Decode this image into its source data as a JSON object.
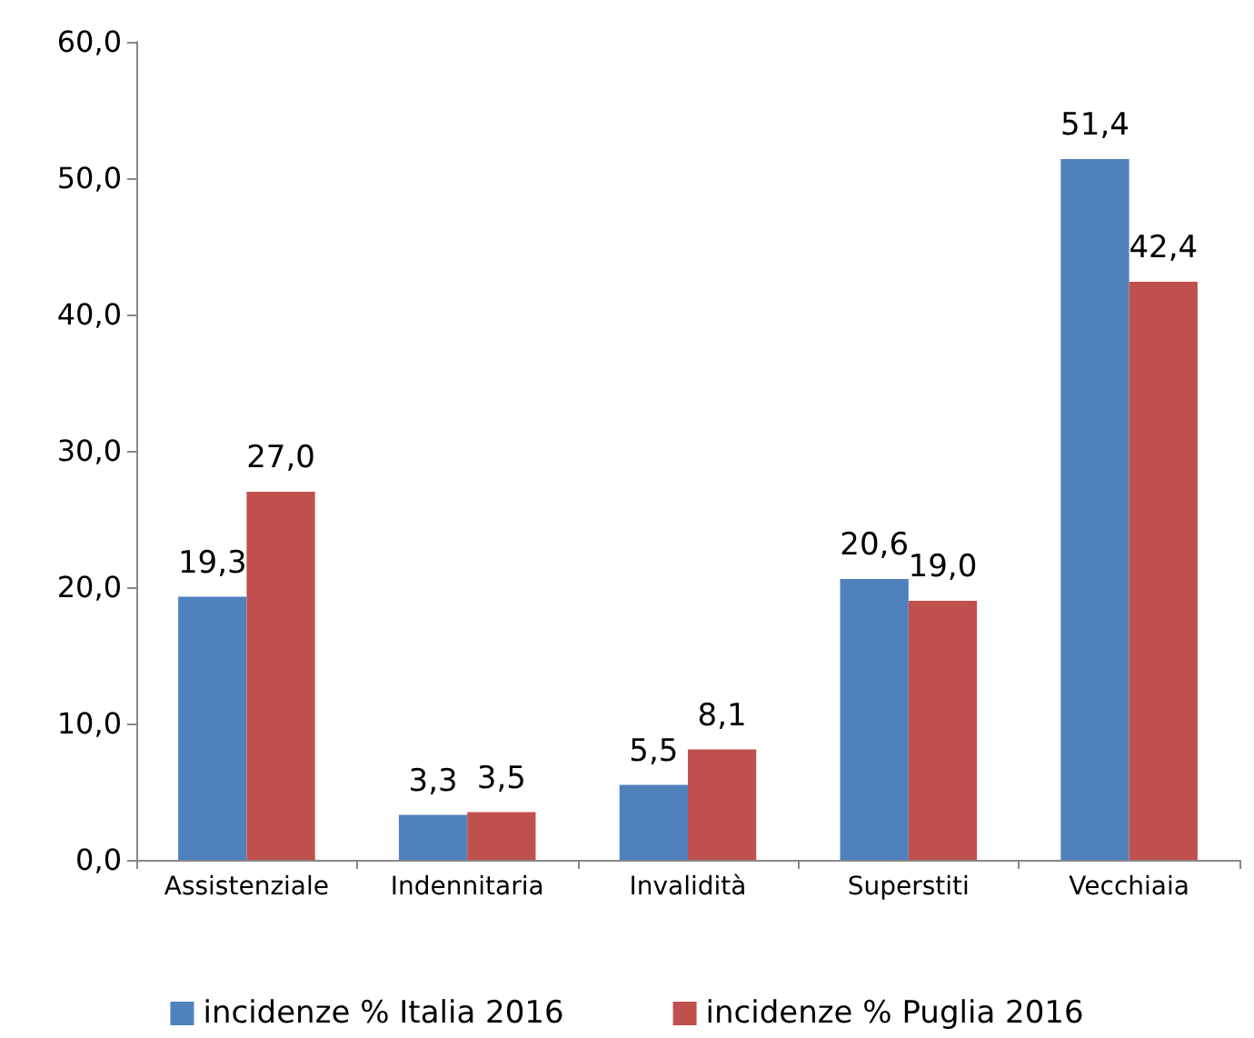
{
  "chart_data": {
    "type": "bar",
    "categories": [
      "Assistenziale",
      "Indennitaria",
      "Invalidità",
      "Superstiti",
      "Vecchiaia"
    ],
    "series": [
      {
        "name": "incidenze % Italia 2016",
        "color": "#4f81bd",
        "values": [
          19.3,
          3.3,
          5.5,
          20.6,
          51.4
        ],
        "value_labels": [
          "19,3",
          "3,3",
          "5,5",
          "20,6",
          "51,4"
        ]
      },
      {
        "name": "incidenze % Puglia 2016",
        "color": "#c0504d",
        "values": [
          27.0,
          3.5,
          8.1,
          19.0,
          42.4
        ],
        "value_labels": [
          "27,0",
          "3,5",
          "8,1",
          "19,0",
          "42,4"
        ]
      }
    ],
    "ylim": [
      0,
      60
    ],
    "yticks": [
      {
        "value": 0,
        "label": "0,0"
      },
      {
        "value": 10,
        "label": "10,0"
      },
      {
        "value": 20,
        "label": "20,0"
      },
      {
        "value": 30,
        "label": "30,0"
      },
      {
        "value": 40,
        "label": "40,0"
      },
      {
        "value": 50,
        "label": "50,0"
      },
      {
        "value": 60,
        "label": "60,0"
      }
    ],
    "grid": false,
    "legend": "bottom"
  }
}
